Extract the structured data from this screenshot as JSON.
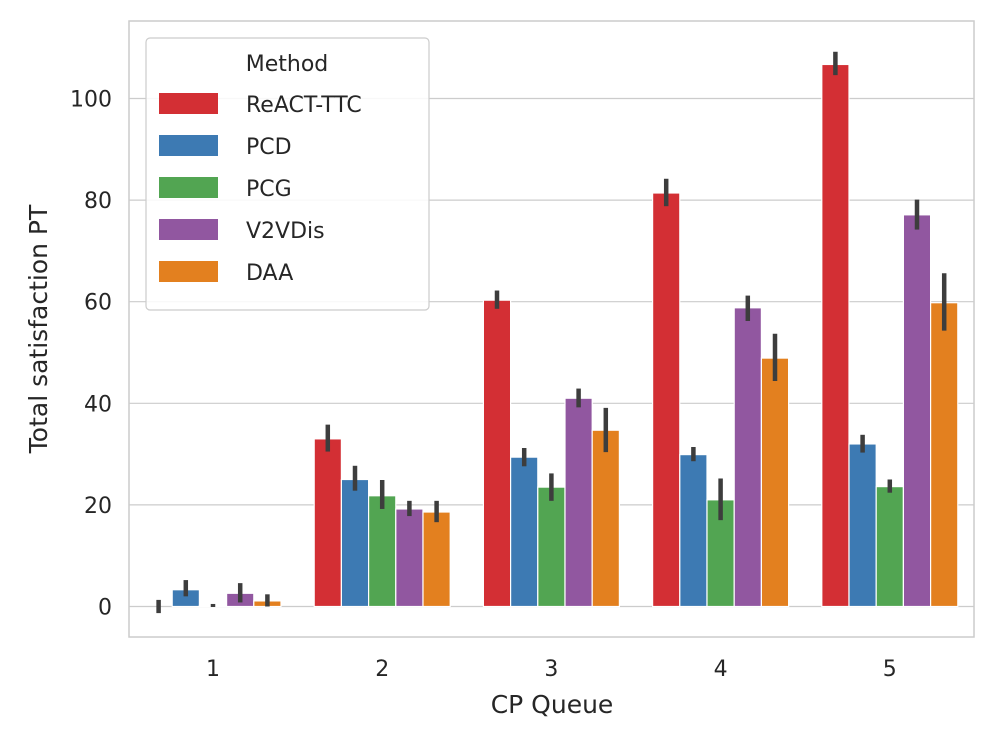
{
  "chart_data": {
    "type": "bar",
    "title": "",
    "xlabel": "CP Queue",
    "ylabel": "Total satisfaction PT",
    "categories": [
      "1",
      "2",
      "3",
      "4",
      "5"
    ],
    "ylim": [
      -6,
      115
    ],
    "yticks": [
      0,
      20,
      40,
      60,
      80,
      100
    ],
    "grid": true,
    "legend": {
      "title": "Method",
      "position": "top-left"
    },
    "series": [
      {
        "name": "ReACT-TTC",
        "color": "#d32f34",
        "values": [
          0,
          33,
          60.3,
          81.4,
          106.7
        ],
        "ci": [
          [
            -1.3,
            1.3
          ],
          [
            30.5,
            35.8
          ],
          [
            58.6,
            62.2
          ],
          [
            78.8,
            84.2
          ],
          [
            104.6,
            109.2
          ]
        ]
      },
      {
        "name": "PCD",
        "color": "#3d7ab3",
        "values": [
          3.3,
          25,
          29.4,
          29.9,
          32
        ],
        "ci": [
          [
            2.0,
            5.2
          ],
          [
            22.8,
            27.7
          ],
          [
            27.6,
            31.2
          ],
          [
            28.6,
            31.4
          ],
          [
            30.3,
            33.8
          ]
        ]
      },
      {
        "name": "PCG",
        "color": "#52a552",
        "values": [
          0.2,
          21.8,
          23.5,
          21,
          23.6
        ],
        "ci": [
          [
            -0.1,
            0.5
          ],
          [
            19.2,
            24.9
          ],
          [
            20.8,
            26.2
          ],
          [
            17.0,
            25.2
          ],
          [
            22.4,
            25.0
          ]
        ]
      },
      {
        "name": "V2VDis",
        "color": "#9157a0",
        "values": [
          2.6,
          19.2,
          41,
          58.8,
          77.1
        ],
        "ci": [
          [
            0.8,
            4.6
          ],
          [
            17.8,
            20.8
          ],
          [
            39.2,
            42.9
          ],
          [
            56.2,
            61.2
          ],
          [
            74.2,
            80.1
          ]
        ]
      },
      {
        "name": "DAA",
        "color": "#e3801f",
        "values": [
          1.1,
          18.6,
          34.7,
          48.9,
          59.8
        ],
        "ci": [
          [
            0.0,
            2.4
          ],
          [
            16.6,
            20.8
          ],
          [
            30.4,
            39.1
          ],
          [
            44.4,
            53.7
          ],
          [
            54.3,
            65.6
          ]
        ]
      }
    ]
  }
}
